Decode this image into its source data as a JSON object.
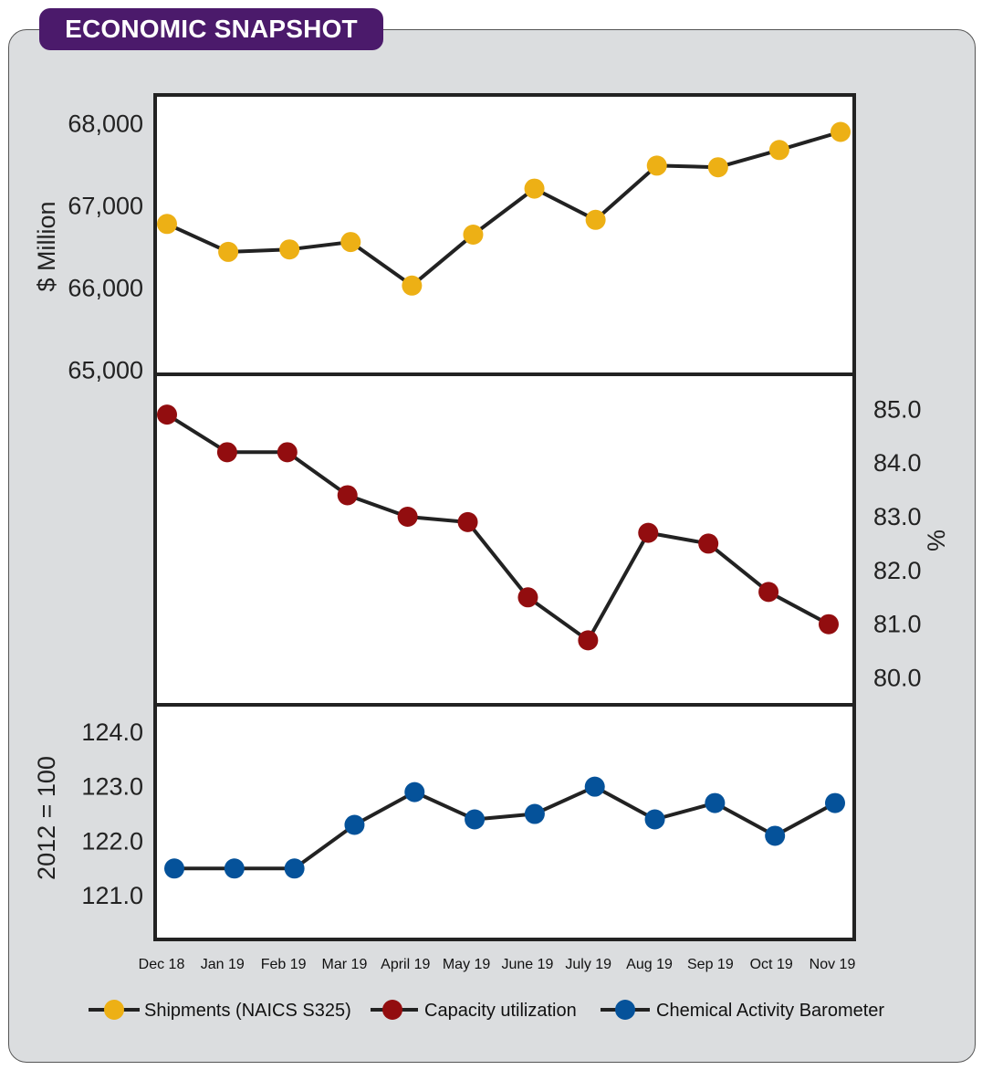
{
  "title": "ECONOMIC SNAPSHOT",
  "colors": {
    "banner": "#4b1a6b",
    "card": "#dbdddf",
    "line": "#222222",
    "shipments": "#edb015",
    "capacity": "#920d0f",
    "barometer": "#05529a"
  },
  "chart_data": {
    "type": "line",
    "categories": [
      "Dec 18",
      "Jan 19",
      "Feb 19",
      "Mar 19",
      "April 19",
      "May 19",
      "June 19",
      "July 19",
      "Aug 19",
      "Sep 19",
      "Oct 19",
      "Nov 19"
    ],
    "panels": [
      {
        "series": "Shipments (NAICS S325)",
        "ylabel": "$ Million",
        "axis_side": "left",
        "ylim": [
          64950,
          68350
        ],
        "ticks": [
          65000,
          66000,
          67000,
          68000
        ],
        "tick_labels": [
          "65,000",
          "66,000",
          "67,000",
          "68,000"
        ],
        "values": [
          66780,
          66440,
          66470,
          66560,
          66030,
          66650,
          67210,
          66830,
          67490,
          67470,
          67680,
          67900
        ]
      },
      {
        "series": "Capacity utilization",
        "ylabel": "%",
        "axis_side": "right",
        "ylim": [
          79.5,
          85.65
        ],
        "ticks": [
          80,
          81,
          82,
          83,
          84,
          85
        ],
        "tick_labels": [
          "80.0",
          "81.0",
          "82.0",
          "83.0",
          "84.0",
          "85.0"
        ],
        "values": [
          84.9,
          84.2,
          84.2,
          83.4,
          83.0,
          82.9,
          81.5,
          80.7,
          82.7,
          82.5,
          81.6,
          81.0
        ]
      },
      {
        "series": "Chemical Activity Barometer",
        "ylabel": "2012 = 100",
        "axis_side": "left",
        "ylim": [
          120.2,
          124.5
        ],
        "ticks": [
          121,
          122,
          123,
          124
        ],
        "tick_labels": [
          "121.0",
          "122.0",
          "123.0",
          "124.0"
        ],
        "values": [
          121.5,
          121.5,
          121.5,
          122.3,
          122.9,
          122.4,
          122.5,
          123.0,
          122.4,
          122.7,
          122.1,
          122.7
        ]
      }
    ],
    "legend": [
      "Shipments (NAICS S325)",
      "Capacity utilization",
      "Chemical Activity Barometer"
    ],
    "legend_position": "bottom"
  }
}
